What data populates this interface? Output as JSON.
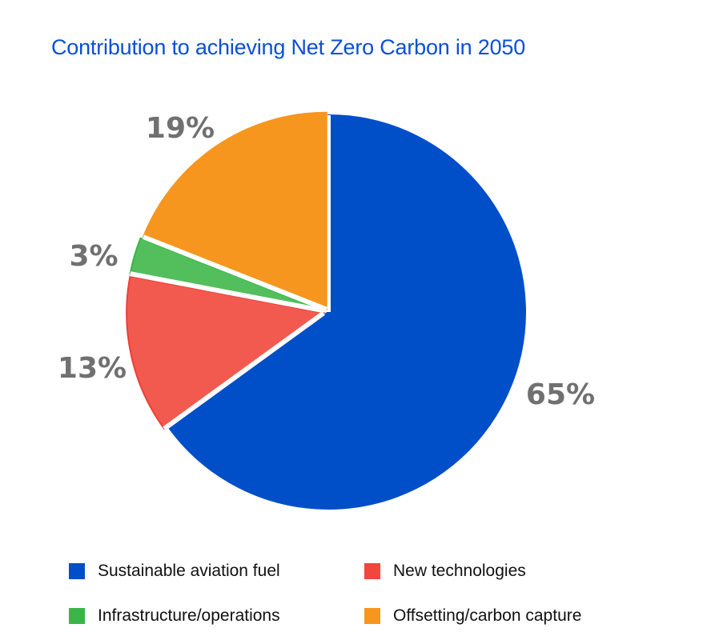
{
  "chart_data": {
    "type": "pie",
    "title": "Contribution to achieving Net Zero Carbon in 2050",
    "slices": [
      {
        "label": "Sustainable aviation fuel",
        "value": 65,
        "display": "65%",
        "color": "#004ec8"
      },
      {
        "label": "New technologies",
        "value": 13,
        "display": "13%",
        "color": "#f25a50"
      },
      {
        "label": "Infrastructure/operations",
        "value": 3,
        "display": "3%",
        "color": "#52be5c"
      },
      {
        "label": "Offsetting/carbon capture",
        "value": 19,
        "display": "19%",
        "color": "#f6961f"
      }
    ],
    "start_angle": "12 o'clock",
    "direction": "clockwise",
    "legend_placement": "bottom"
  }
}
